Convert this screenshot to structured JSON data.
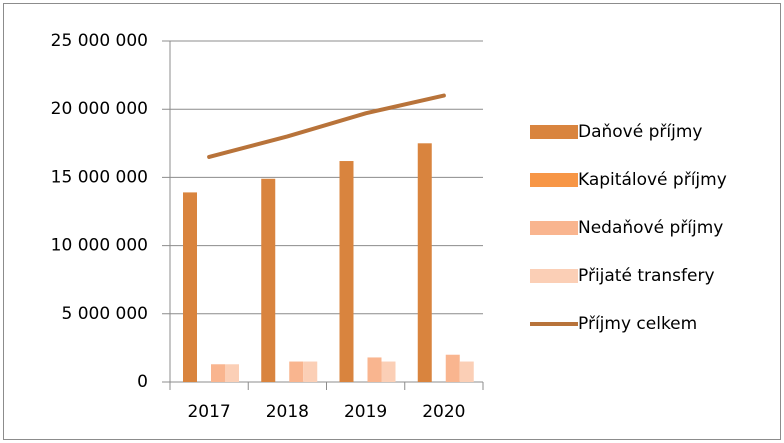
{
  "chart_data": {
    "type": "bar",
    "categories": [
      "2017",
      "2018",
      "2019",
      "2020"
    ],
    "series": [
      {
        "name": "Daňové příjmy",
        "color": "#d9843e",
        "values": [
          13900000,
          14900000,
          16200000,
          17500000
        ]
      },
      {
        "name": "Kapitálové příjmy",
        "color": "#f79646",
        "values": [
          0,
          0,
          0,
          0
        ]
      },
      {
        "name": "Nedaňové příjmy",
        "color": "#f9b58f",
        "values": [
          1300000,
          1500000,
          1800000,
          2000000
        ]
      },
      {
        "name": "Přijaté transfery",
        "color": "#fbcfb6",
        "values": [
          1300000,
          1500000,
          1500000,
          1500000
        ]
      },
      {
        "name": "Příjmy celkem",
        "color": "#b8733a",
        "type": "line",
        "values": [
          16500000,
          18000000,
          19700000,
          21000000
        ]
      }
    ],
    "ylim": [
      0,
      25000000
    ],
    "yticks": [
      0,
      {
        "value": 5000000,
        "label": "5 000 000"
      },
      {
        "value": 10000000,
        "label": "10 000 000"
      },
      {
        "value": 15000000,
        "label": "15 000 000"
      },
      {
        "value": 20000000,
        "label": "20 000 000"
      },
      {
        "value": 25000000,
        "label": "25 000 000"
      }
    ],
    "grid": true,
    "legend": "right"
  }
}
